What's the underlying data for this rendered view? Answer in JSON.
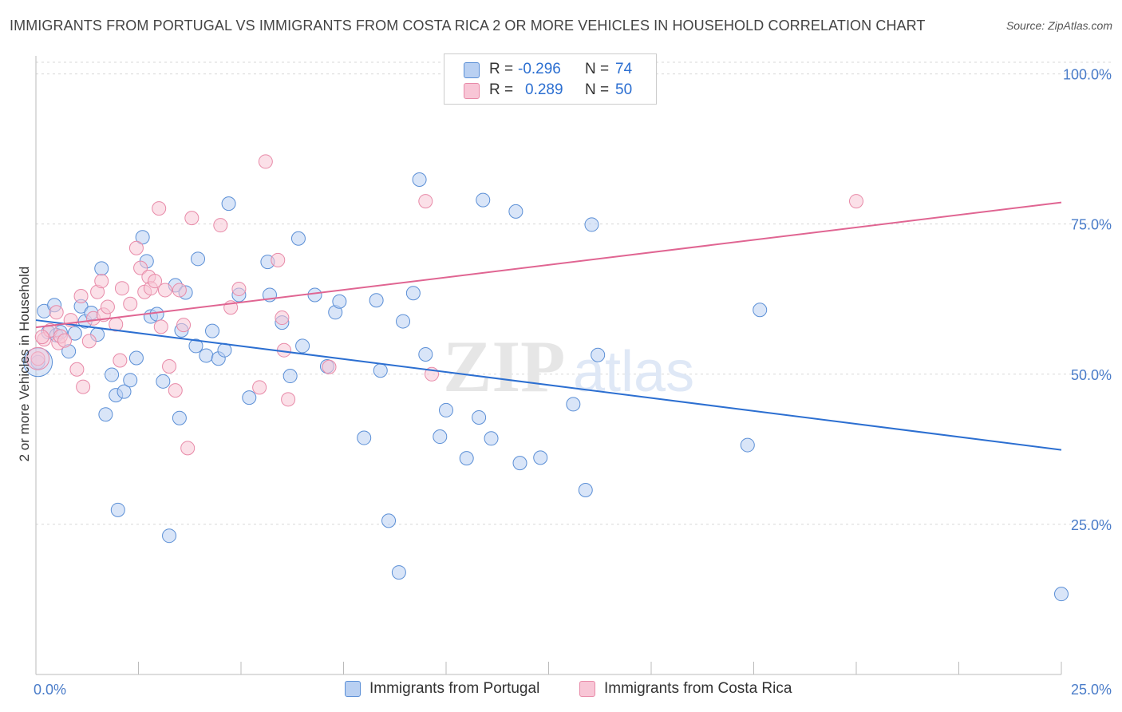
{
  "title": "IMMIGRANTS FROM PORTUGAL VS IMMIGRANTS FROM COSTA RICA 2 OR MORE VEHICLES IN HOUSEHOLD CORRELATION CHART",
  "source": "Source: ZipAtlas.com",
  "watermark": {
    "zip": "ZIP",
    "atlas": "atlas"
  },
  "legend": {
    "rows": [
      {
        "r_label": "R =",
        "r_value": "-0.296",
        "n_label": "N =",
        "n_value": "74"
      },
      {
        "r_label": "R =",
        "r_value": "0.289",
        "n_label": "N =",
        "n_value": "50"
      }
    ]
  },
  "colors": {
    "portugal_fill": "#b9d0f2",
    "portugal_stroke": "#5b8fd6",
    "portugal_line": "#2c6fd1",
    "costarica_fill": "#f8c6d6",
    "costarica_stroke": "#e88aa8",
    "costarica_line": "#e06592",
    "grid": "#d8d8d8",
    "tick_text": "#4a7cc9"
  },
  "chart_data": {
    "type": "scatter",
    "title": "IMMIGRANTS FROM PORTUGAL VS IMMIGRANTS FROM COSTA RICA 2 OR MORE VEHICLES IN HOUSEHOLD CORRELATION CHART",
    "xlabel": "",
    "ylabel": "2 or more Vehicles in Household",
    "xlim": [
      0,
      25
    ],
    "ylim": [
      0,
      103
    ],
    "x_tick_labels": [
      "0.0%",
      "25.0%"
    ],
    "y_ticks": [
      25,
      50,
      75,
      100
    ],
    "y_tick_labels": [
      "25.0%",
      "50.0%",
      "75.0%",
      "100.0%"
    ],
    "grid": "dashed horizontal",
    "legend_placement": "bottom",
    "series": [
      {
        "name": "Immigrants from Portugal",
        "trend": [
          [
            0,
            59.0
          ],
          [
            25,
            37.4
          ]
        ],
        "points": [
          [
            0.05,
            52.0
          ],
          [
            0.2,
            60.5
          ],
          [
            0.3,
            57.0
          ],
          [
            0.45,
            61.5
          ],
          [
            0.5,
            56.5
          ],
          [
            0.6,
            57.0
          ],
          [
            0.8,
            53.8
          ],
          [
            0.95,
            56.8
          ],
          [
            1.1,
            61.3
          ],
          [
            1.2,
            58.8
          ],
          [
            1.35,
            60.2
          ],
          [
            1.5,
            56.6
          ],
          [
            1.6,
            67.6
          ],
          [
            1.7,
            43.3
          ],
          [
            1.85,
            49.9
          ],
          [
            1.95,
            46.5
          ],
          [
            2.0,
            27.4
          ],
          [
            2.15,
            47.1
          ],
          [
            2.3,
            49.0
          ],
          [
            2.45,
            52.7
          ],
          [
            2.6,
            72.8
          ],
          [
            2.7,
            68.8
          ],
          [
            2.8,
            59.6
          ],
          [
            2.95,
            60.0
          ],
          [
            3.1,
            48.8
          ],
          [
            3.25,
            23.1
          ],
          [
            3.4,
            64.8
          ],
          [
            3.5,
            42.7
          ],
          [
            3.55,
            57.3
          ],
          [
            3.65,
            63.6
          ],
          [
            3.9,
            54.7
          ],
          [
            3.95,
            69.2
          ],
          [
            4.15,
            53.1
          ],
          [
            4.3,
            57.2
          ],
          [
            4.45,
            52.6
          ],
          [
            4.6,
            54.0
          ],
          [
            4.7,
            78.4
          ],
          [
            4.95,
            63.2
          ],
          [
            5.2,
            46.1
          ],
          [
            5.65,
            68.7
          ],
          [
            5.7,
            63.2
          ],
          [
            6.0,
            58.6
          ],
          [
            6.2,
            49.7
          ],
          [
            6.4,
            72.6
          ],
          [
            6.5,
            54.7
          ],
          [
            6.8,
            63.2
          ],
          [
            7.1,
            51.3
          ],
          [
            7.3,
            60.3
          ],
          [
            7.4,
            62.1
          ],
          [
            8.0,
            39.4
          ],
          [
            8.3,
            62.3
          ],
          [
            8.4,
            50.6
          ],
          [
            8.6,
            25.6
          ],
          [
            8.85,
            17.0
          ],
          [
            8.95,
            58.8
          ],
          [
            9.2,
            63.5
          ],
          [
            9.35,
            82.4
          ],
          [
            9.5,
            53.3
          ],
          [
            9.85,
            39.6
          ],
          [
            10.0,
            44.0
          ],
          [
            10.5,
            36.0
          ],
          [
            10.8,
            42.8
          ],
          [
            10.9,
            79.0
          ],
          [
            11.1,
            39.3
          ],
          [
            11.7,
            77.1
          ],
          [
            11.8,
            35.2
          ],
          [
            12.3,
            36.1
          ],
          [
            13.1,
            45.0
          ],
          [
            13.4,
            30.7
          ],
          [
            13.55,
            74.9
          ],
          [
            13.7,
            53.2
          ],
          [
            17.35,
            38.2
          ],
          [
            17.65,
            60.7
          ],
          [
            25.0,
            13.4
          ]
        ]
      },
      {
        "name": "Immigrants from Costa Rica",
        "trend": [
          [
            0,
            57.8
          ],
          [
            25,
            78.6
          ]
        ],
        "points": [
          [
            0.05,
            52.6
          ],
          [
            0.2,
            55.8
          ],
          [
            0.35,
            57.3
          ],
          [
            0.5,
            60.3
          ],
          [
            0.55,
            55.2
          ],
          [
            0.6,
            56.3
          ],
          [
            0.7,
            55.6
          ],
          [
            0.85,
            59.0
          ],
          [
            1.0,
            50.8
          ],
          [
            1.1,
            63.0
          ],
          [
            1.15,
            47.9
          ],
          [
            1.3,
            55.5
          ],
          [
            1.4,
            59.3
          ],
          [
            1.5,
            63.7
          ],
          [
            1.6,
            65.5
          ],
          [
            1.65,
            59.9
          ],
          [
            1.75,
            61.2
          ],
          [
            1.95,
            58.3
          ],
          [
            2.05,
            52.3
          ],
          [
            2.1,
            64.3
          ],
          [
            2.3,
            61.7
          ],
          [
            2.45,
            71.0
          ],
          [
            2.55,
            67.7
          ],
          [
            2.65,
            63.7
          ],
          [
            2.75,
            66.2
          ],
          [
            2.8,
            64.3
          ],
          [
            2.9,
            65.5
          ],
          [
            3.0,
            77.6
          ],
          [
            3.05,
            57.9
          ],
          [
            3.15,
            64.0
          ],
          [
            3.25,
            51.3
          ],
          [
            3.4,
            47.3
          ],
          [
            3.5,
            64.0
          ],
          [
            3.6,
            58.2
          ],
          [
            3.8,
            76.0
          ],
          [
            3.7,
            37.7
          ],
          [
            4.5,
            74.8
          ],
          [
            4.75,
            61.1
          ],
          [
            4.95,
            64.2
          ],
          [
            5.45,
            47.8
          ],
          [
            5.6,
            85.4
          ],
          [
            5.9,
            69.0
          ],
          [
            6.05,
            54.0
          ],
          [
            6.15,
            45.8
          ],
          [
            6.0,
            59.4
          ],
          [
            7.15,
            51.2
          ],
          [
            9.5,
            78.8
          ],
          [
            9.65,
            50.0
          ],
          [
            20.0,
            78.8
          ],
          [
            0.15,
            56.2
          ]
        ]
      }
    ]
  },
  "bottom_legend": {
    "portugal": "Immigrants from Portugal",
    "costarica": "Immigrants from Costa Rica"
  }
}
